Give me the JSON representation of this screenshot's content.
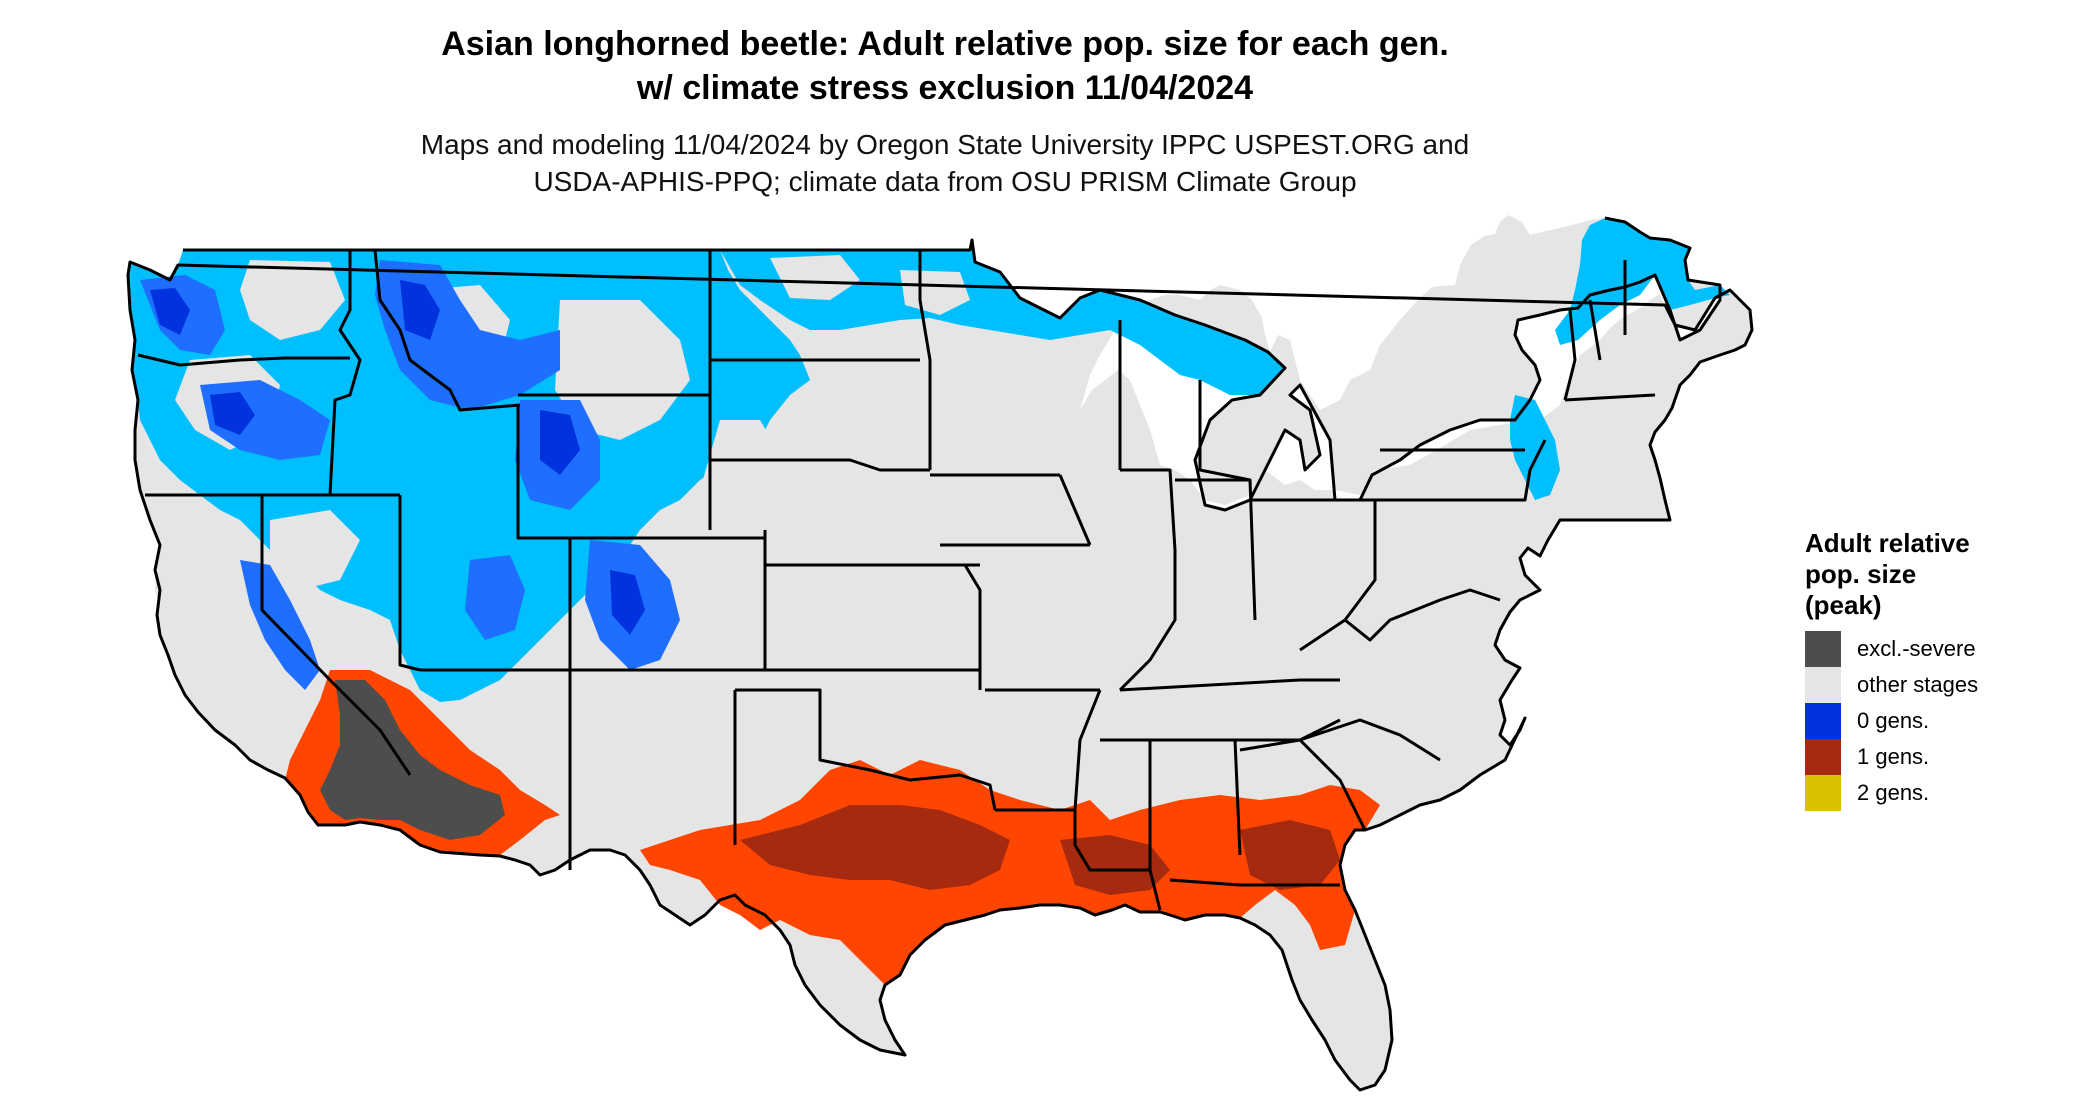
{
  "title": {
    "line1": "Asian longhorned beetle: Adult relative pop. size for each gen.",
    "line2": "w/ climate stress exclusion 11/04/2024"
  },
  "subtitle": {
    "line1": "Maps and modeling 11/04/2024 by Oregon State University IPPC USPEST.ORG and",
    "line2": "USDA-APHIS-PPQ; climate data from OSU PRISM Climate Group"
  },
  "legend": {
    "title_lines": [
      "Adult relative",
      "pop. size",
      "(peak)"
    ],
    "items": [
      {
        "label": "excl.-severe",
        "color": "#4d4d4d"
      },
      {
        "label": "other stages",
        "color": "#e5e5e5"
      },
      {
        "label": "0 gens.",
        "color": "#0033dd"
      },
      {
        "label": "1 gens.",
        "color": "#a52a10"
      },
      {
        "label": "2 gens.",
        "color": "#d9c100"
      }
    ]
  },
  "colors": {
    "land": "#e5e5e5",
    "light_blue": "#00bfff",
    "mid_blue": "#1e6fff",
    "dark_blue": "#0033dd",
    "orange": "#ff4500",
    "dark_red": "#a52a10",
    "excluded": "#4d4d4d",
    "border": "#000000"
  }
}
